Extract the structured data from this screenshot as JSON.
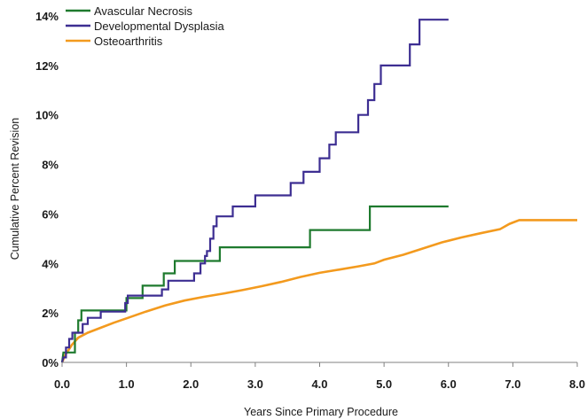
{
  "chart_data": {
    "type": "line",
    "step": true,
    "xlabel": "Years Since Primary Procedure",
    "ylabel": "Cumulative Percent Revision",
    "xlim": [
      0,
      8
    ],
    "ylim": [
      0,
      14
    ],
    "xticks": [
      "0.0",
      "1.0",
      "2.0",
      "3.0",
      "4.0",
      "5.0",
      "6.0",
      "7.0",
      "8.0"
    ],
    "yticks": [
      "0%",
      "2%",
      "4%",
      "6%",
      "8%",
      "10%",
      "12%",
      "14%"
    ],
    "grid": false,
    "legend_position": "top-left",
    "series": [
      {
        "name": "Avascular Necrosis",
        "color": "#1e7a2e",
        "points": [
          [
            0,
            0.0
          ],
          [
            0.02,
            0.4
          ],
          [
            0.2,
            0.4
          ],
          [
            0.2,
            1.2
          ],
          [
            0.25,
            1.2
          ],
          [
            0.25,
            1.7
          ],
          [
            0.3,
            1.7
          ],
          [
            0.3,
            2.1
          ],
          [
            1.0,
            2.1
          ],
          [
            1.0,
            2.6
          ],
          [
            1.25,
            2.6
          ],
          [
            1.25,
            3.1
          ],
          [
            1.58,
            3.1
          ],
          [
            1.58,
            3.6
          ],
          [
            1.75,
            3.6
          ],
          [
            1.75,
            4.1
          ],
          [
            2.45,
            4.1
          ],
          [
            2.45,
            4.65
          ],
          [
            3.85,
            4.65
          ],
          [
            3.85,
            5.35
          ],
          [
            4.78,
            5.35
          ],
          [
            4.78,
            6.3
          ],
          [
            6.0,
            6.3
          ]
        ]
      },
      {
        "name": "Developmental Dysplasia",
        "color": "#3d2e92",
        "points": [
          [
            0,
            0.0
          ],
          [
            0.02,
            0.2
          ],
          [
            0.06,
            0.2
          ],
          [
            0.06,
            0.6
          ],
          [
            0.11,
            0.6
          ],
          [
            0.11,
            0.95
          ],
          [
            0.16,
            0.95
          ],
          [
            0.16,
            1.2
          ],
          [
            0.32,
            1.2
          ],
          [
            0.32,
            1.55
          ],
          [
            0.4,
            1.55
          ],
          [
            0.4,
            1.8
          ],
          [
            0.6,
            1.8
          ],
          [
            0.6,
            2.05
          ],
          [
            0.98,
            2.05
          ],
          [
            0.98,
            2.4
          ],
          [
            1.02,
            2.4
          ],
          [
            1.02,
            2.7
          ],
          [
            1.55,
            2.7
          ],
          [
            1.55,
            2.95
          ],
          [
            1.65,
            2.95
          ],
          [
            1.65,
            3.3
          ],
          [
            2.05,
            3.3
          ],
          [
            2.05,
            3.6
          ],
          [
            2.15,
            3.6
          ],
          [
            2.15,
            4.0
          ],
          [
            2.22,
            4.0
          ],
          [
            2.22,
            4.3
          ],
          [
            2.25,
            4.3
          ],
          [
            2.25,
            4.5
          ],
          [
            2.3,
            4.5
          ],
          [
            2.3,
            5.0
          ],
          [
            2.35,
            5.0
          ],
          [
            2.35,
            5.5
          ],
          [
            2.4,
            5.5
          ],
          [
            2.4,
            5.9
          ],
          [
            2.65,
            5.9
          ],
          [
            2.65,
            6.3
          ],
          [
            3.0,
            6.3
          ],
          [
            3.0,
            6.75
          ],
          [
            3.55,
            6.75
          ],
          [
            3.55,
            7.25
          ],
          [
            3.75,
            7.25
          ],
          [
            3.75,
            7.7
          ],
          [
            4.0,
            7.7
          ],
          [
            4.0,
            8.25
          ],
          [
            4.15,
            8.25
          ],
          [
            4.15,
            8.8
          ],
          [
            4.25,
            8.8
          ],
          [
            4.25,
            9.3
          ],
          [
            4.6,
            9.3
          ],
          [
            4.6,
            10.0
          ],
          [
            4.75,
            10.0
          ],
          [
            4.75,
            10.6
          ],
          [
            4.85,
            10.6
          ],
          [
            4.85,
            11.25
          ],
          [
            4.95,
            11.25
          ],
          [
            4.95,
            12.0
          ],
          [
            5.4,
            12.0
          ],
          [
            5.4,
            12.85
          ],
          [
            5.55,
            12.85
          ],
          [
            5.55,
            13.85
          ],
          [
            6.0,
            13.85
          ]
        ]
      },
      {
        "name": "Osteoarthritis",
        "color": "#f39a1e",
        "points": [
          [
            0,
            0.0
          ],
          [
            0.05,
            0.3
          ],
          [
            0.1,
            0.5
          ],
          [
            0.15,
            0.7
          ],
          [
            0.25,
            1.0
          ],
          [
            0.4,
            1.2
          ],
          [
            0.6,
            1.4
          ],
          [
            0.8,
            1.6
          ],
          [
            1.0,
            1.78
          ],
          [
            1.3,
            2.05
          ],
          [
            1.6,
            2.3
          ],
          [
            1.9,
            2.5
          ],
          [
            2.2,
            2.65
          ],
          [
            2.5,
            2.78
          ],
          [
            2.8,
            2.92
          ],
          [
            3.1,
            3.08
          ],
          [
            3.4,
            3.25
          ],
          [
            3.7,
            3.45
          ],
          [
            4.0,
            3.62
          ],
          [
            4.3,
            3.75
          ],
          [
            4.6,
            3.88
          ],
          [
            4.85,
            4.0
          ],
          [
            5.0,
            4.15
          ],
          [
            5.3,
            4.35
          ],
          [
            5.6,
            4.6
          ],
          [
            5.9,
            4.85
          ],
          [
            6.2,
            5.05
          ],
          [
            6.5,
            5.22
          ],
          [
            6.8,
            5.38
          ],
          [
            6.95,
            5.6
          ],
          [
            7.1,
            5.75
          ],
          [
            7.5,
            5.75
          ],
          [
            8.0,
            5.75
          ]
        ]
      }
    ]
  }
}
